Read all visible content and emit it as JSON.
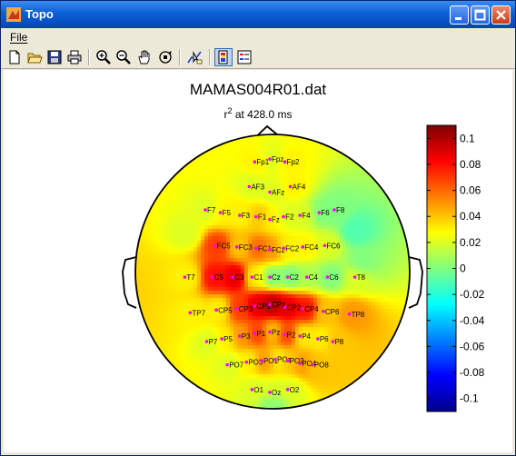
{
  "window": {
    "title": "Topo"
  },
  "menu": {
    "file_label": "File"
  },
  "toolbar_icons": [
    "new-file-icon",
    "open-folder-icon",
    "save-icon",
    "print-icon",
    "zoom-in-icon",
    "zoom-out-icon",
    "pan-hand-icon",
    "rotate-3d-icon",
    "data-cursor-icon",
    "colorbar-icon",
    "legend-icon"
  ],
  "figure": {
    "title": "MAMAS004R01.dat",
    "subtitle_r": "r",
    "subtitle_sup": "2",
    "subtitle_rest": " at 428.0 ms"
  },
  "colors": {
    "titlebar": "#0a5fd6",
    "electrode_dot": "#ff00ff"
  },
  "chart_data": {
    "type": "heatmap",
    "colorbar": {
      "min": -0.11,
      "max": 0.11,
      "ticks": [
        0.1,
        0.08,
        0.06,
        0.04,
        0.02,
        0,
        -0.02,
        -0.04,
        -0.06,
        -0.08,
        -0.1
      ],
      "tick_labels": [
        "0.1",
        "0.08",
        "0.06",
        "0.04",
        "0.02",
        "0",
        "-0.02",
        "-0.04",
        "-0.06",
        "-0.08",
        "-0.1"
      ],
      "colormap": "jet"
    },
    "electrodes": [
      {
        "label": "Fp1",
        "x": -0.11,
        "y": 0.8,
        "v": 0.03
      },
      {
        "label": "Fpz",
        "x": 0.0,
        "y": 0.82,
        "v": 0.02
      },
      {
        "label": "Fp2",
        "x": 0.11,
        "y": 0.8,
        "v": 0.03
      },
      {
        "label": "AF3",
        "x": -0.15,
        "y": 0.62,
        "v": 0.02
      },
      {
        "label": "AFz",
        "x": 0.0,
        "y": 0.58,
        "v": 0.02
      },
      {
        "label": "AF4",
        "x": 0.15,
        "y": 0.62,
        "v": 0.03
      },
      {
        "label": "F7",
        "x": -0.47,
        "y": 0.45,
        "v": 0.02
      },
      {
        "label": "F5",
        "x": -0.36,
        "y": 0.43,
        "v": 0.03
      },
      {
        "label": "F3",
        "x": -0.22,
        "y": 0.41,
        "v": 0.03
      },
      {
        "label": "F1",
        "x": -0.1,
        "y": 0.4,
        "v": 0.04
      },
      {
        "label": "Fz",
        "x": 0.0,
        "y": 0.38,
        "v": 0.03
      },
      {
        "label": "F2",
        "x": 0.1,
        "y": 0.4,
        "v": 0.02
      },
      {
        "label": "F4",
        "x": 0.22,
        "y": 0.41,
        "v": 0.02
      },
      {
        "label": "F6",
        "x": 0.36,
        "y": 0.43,
        "v": 0.0
      },
      {
        "label": "F8",
        "x": 0.47,
        "y": 0.45,
        "v": 0.0
      },
      {
        "label": "FC5",
        "x": -0.4,
        "y": 0.19,
        "v": 0.07
      },
      {
        "label": "FC3",
        "x": -0.24,
        "y": 0.18,
        "v": 0.04
      },
      {
        "label": "FC1",
        "x": -0.1,
        "y": 0.17,
        "v": 0.06
      },
      {
        "label": "FCz",
        "x": 0.0,
        "y": 0.16,
        "v": 0.05
      },
      {
        "label": "FC2",
        "x": 0.1,
        "y": 0.17,
        "v": 0.03
      },
      {
        "label": "FC4",
        "x": 0.24,
        "y": 0.18,
        "v": 0.03
      },
      {
        "label": "FC6",
        "x": 0.4,
        "y": 0.19,
        "v": 0.02
      },
      {
        "label": "T7",
        "x": -0.62,
        "y": -0.04,
        "v": 0.03
      },
      {
        "label": "C5",
        "x": -0.42,
        "y": -0.04,
        "v": 0.08
      },
      {
        "label": "C3",
        "x": -0.27,
        "y": -0.04,
        "v": 0.09
      },
      {
        "label": "C1",
        "x": -0.13,
        "y": -0.04,
        "v": 0.03
      },
      {
        "label": "Cz",
        "x": 0.0,
        "y": -0.04,
        "v": 0.0
      },
      {
        "label": "C2",
        "x": 0.13,
        "y": -0.04,
        "v": 0.0
      },
      {
        "label": "C4",
        "x": 0.27,
        "y": -0.04,
        "v": 0.01
      },
      {
        "label": "C6",
        "x": 0.42,
        "y": -0.04,
        "v": 0.0
      },
      {
        "label": "T8",
        "x": 0.62,
        "y": -0.04,
        "v": 0.02
      },
      {
        "label": "TP7",
        "x": -0.58,
        "y": -0.3,
        "v": 0.03
      },
      {
        "label": "CP5",
        "x": -0.39,
        "y": -0.28,
        "v": 0.03
      },
      {
        "label": "CP3",
        "x": -0.24,
        "y": -0.27,
        "v": 0.07
      },
      {
        "label": "CP1",
        "x": -0.11,
        "y": -0.25,
        "v": 0.09
      },
      {
        "label": "CPz",
        "x": 0.0,
        "y": -0.24,
        "v": 0.1
      },
      {
        "label": "CP2",
        "x": 0.11,
        "y": -0.26,
        "v": 0.09
      },
      {
        "label": "CP4",
        "x": 0.24,
        "y": -0.27,
        "v": 0.08
      },
      {
        "label": "CP6",
        "x": 0.39,
        "y": -0.29,
        "v": 0.04
      },
      {
        "label": "TP8",
        "x": 0.58,
        "y": -0.31,
        "v": 0.05
      },
      {
        "label": "P7",
        "x": -0.46,
        "y": -0.51,
        "v": 0.02
      },
      {
        "label": "P5",
        "x": -0.35,
        "y": -0.49,
        "v": 0.03
      },
      {
        "label": "P3",
        "x": -0.22,
        "y": -0.47,
        "v": 0.05
      },
      {
        "label": "P1",
        "x": -0.11,
        "y": -0.45,
        "v": 0.07
      },
      {
        "label": "Pz",
        "x": 0.0,
        "y": -0.44,
        "v": 0.04
      },
      {
        "label": "P2",
        "x": 0.11,
        "y": -0.46,
        "v": 0.07
      },
      {
        "label": "P4",
        "x": 0.22,
        "y": -0.47,
        "v": 0.03
      },
      {
        "label": "P6",
        "x": 0.35,
        "y": -0.49,
        "v": 0.03
      },
      {
        "label": "P8",
        "x": 0.46,
        "y": -0.51,
        "v": 0.04
      },
      {
        "label": "PO7",
        "x": -0.31,
        "y": -0.68,
        "v": 0.02
      },
      {
        "label": "PO3",
        "x": -0.17,
        "y": -0.66,
        "v": 0.03
      },
      {
        "label": "PO1",
        "x": -0.06,
        "y": -0.65,
        "v": 0.05
      },
      {
        "label": "POz",
        "x": 0.04,
        "y": -0.64,
        "v": 0.03
      },
      {
        "label": "PO2",
        "x": 0.13,
        "y": -0.65,
        "v": 0.04
      },
      {
        "label": "PO4",
        "x": 0.22,
        "y": -0.67,
        "v": 0.05
      },
      {
        "label": "PO8",
        "x": 0.31,
        "y": -0.68,
        "v": 0.04
      },
      {
        "label": "O1",
        "x": -0.13,
        "y": -0.86,
        "v": 0.02
      },
      {
        "label": "Oz",
        "x": 0.0,
        "y": -0.88,
        "v": 0.02
      },
      {
        "label": "O2",
        "x": 0.13,
        "y": -0.86,
        "v": 0.02
      }
    ],
    "background_field": [
      {
        "x": 0.6,
        "y": 0.3,
        "v": -0.01
      },
      {
        "x": 0.65,
        "y": 0.05,
        "v": 0.0
      },
      {
        "x": -0.62,
        "y": 0.28,
        "v": 0.02
      },
      {
        "x": 0.0,
        "y": -0.96,
        "v": 0.0
      }
    ]
  }
}
